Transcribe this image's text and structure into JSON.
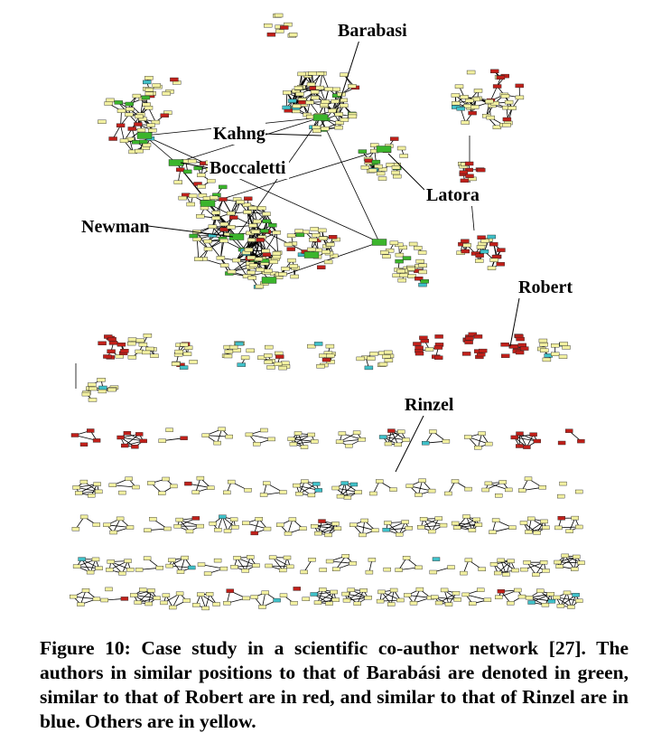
{
  "figure": {
    "labels": {
      "barabasi": "Barabasi",
      "kahng": "Kahng",
      "boccaletti": "Boccaletti",
      "latora": "Latora",
      "newman": "Newman",
      "robert": "Robert",
      "rinzel": "Rinzel"
    },
    "colors": {
      "similar_to_barabasi": "#3bb52c",
      "similar_to_robert": "#c0201a",
      "similar_to_rinzel": "#3fc0c8",
      "others": "#f2f0a0",
      "edge": "#000000"
    }
  },
  "caption": "Figure 10: Case study in a scientific co-author network [27]. The authors in similar positions to that of Barabási are denoted in green, similar to that of Robert are in red, and similar to that of Rinzel are in blue. Others are in yellow."
}
